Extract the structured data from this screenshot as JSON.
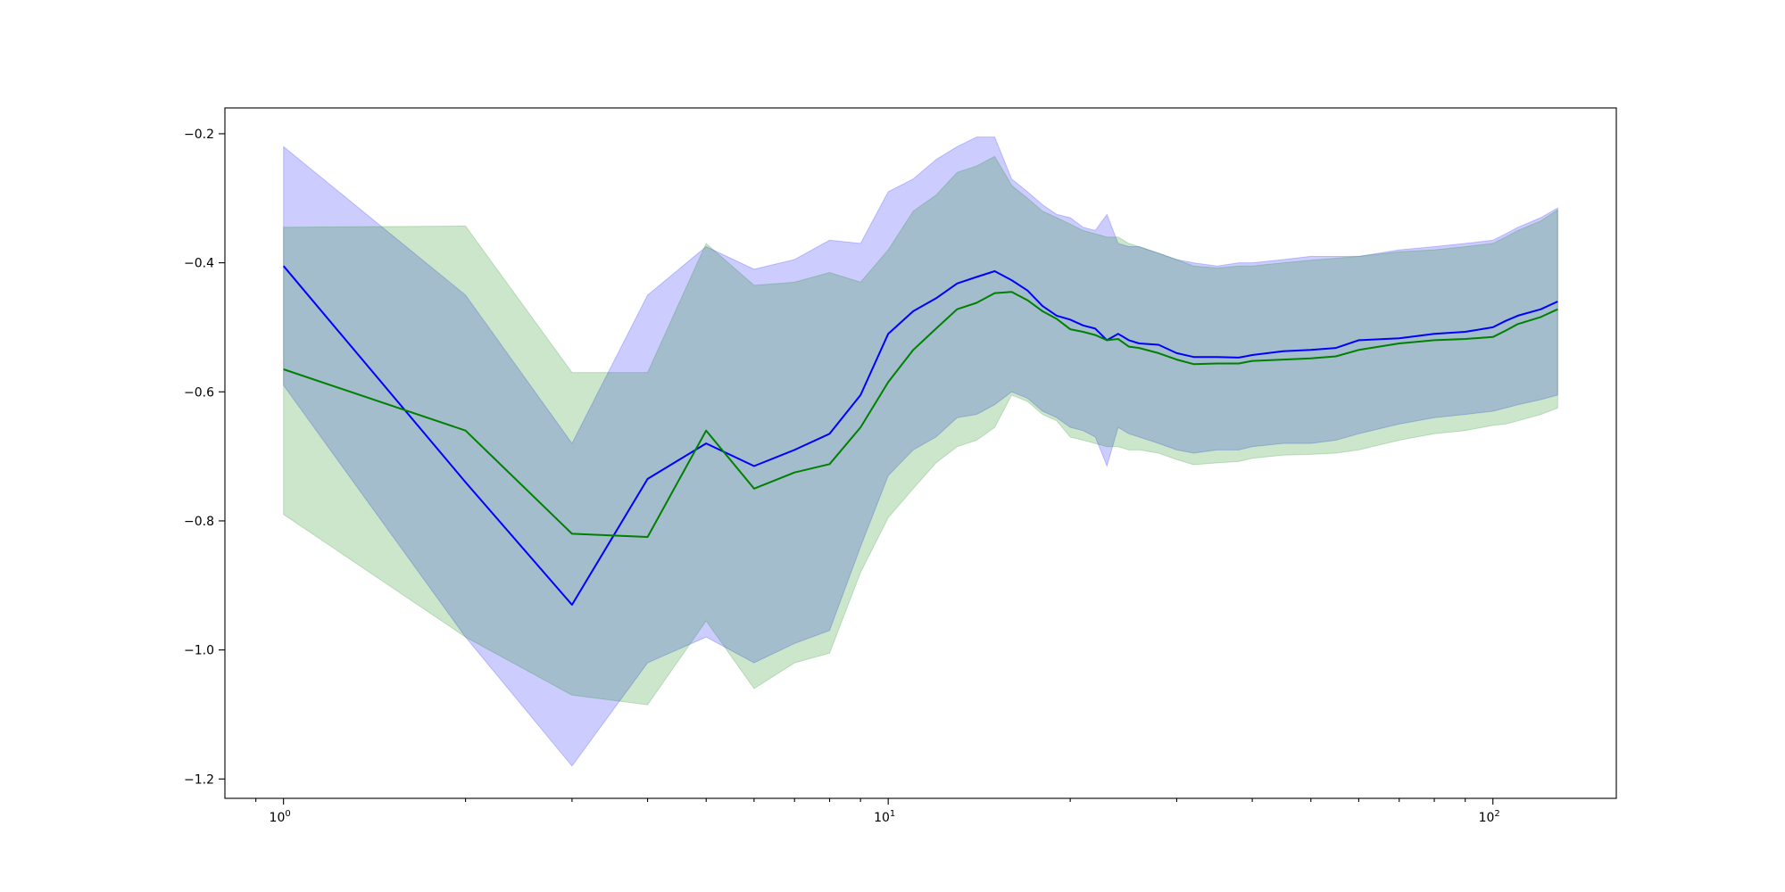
{
  "chart_data": {
    "type": "line",
    "title": "",
    "xlabel": "",
    "ylabel": "",
    "xscale": "log",
    "xlim": [
      0.8,
      160
    ],
    "ylim": [
      -1.23,
      -0.16
    ],
    "grid": false,
    "legend": "none",
    "x_ticks": [
      {
        "value": 1,
        "base": "10",
        "exp": "0"
      },
      {
        "value": 10,
        "base": "10",
        "exp": "1"
      },
      {
        "value": 100,
        "base": "10",
        "exp": "2"
      }
    ],
    "y_ticks": [
      {
        "value": -0.2,
        "label": "−0.2"
      },
      {
        "value": -0.4,
        "label": "−0.4"
      },
      {
        "value": -0.6,
        "label": "−0.6"
      },
      {
        "value": -0.8,
        "label": "−0.8"
      },
      {
        "value": -1.0,
        "label": "−1.0"
      },
      {
        "value": -1.2,
        "label": "−1.2"
      }
    ],
    "series": [
      {
        "color": "#0000ff",
        "band_color": "#0000ff",
        "band_opacity": 0.2,
        "x": [
          1,
          2,
          3,
          4,
          5,
          6,
          7,
          8,
          9,
          10,
          11,
          12,
          13,
          14,
          15,
          16,
          17,
          18,
          19,
          20,
          21,
          22,
          23,
          24,
          25,
          26,
          28,
          30,
          32,
          35,
          38,
          40,
          45,
          50,
          55,
          60,
          70,
          80,
          90,
          100,
          105,
          110,
          120,
          128
        ],
        "mean": [
          -0.405,
          -0.74,
          -0.93,
          -0.735,
          -0.68,
          -0.715,
          -0.69,
          -0.665,
          -0.605,
          -0.51,
          -0.475,
          -0.455,
          -0.432,
          -0.422,
          -0.413,
          -0.427,
          -0.443,
          -0.467,
          -0.482,
          -0.488,
          -0.497,
          -0.502,
          -0.52,
          -0.51,
          -0.52,
          -0.525,
          -0.527,
          -0.54,
          -0.546,
          -0.546,
          -0.547,
          -0.543,
          -0.537,
          -0.535,
          -0.532,
          -0.52,
          -0.517,
          -0.51,
          -0.507,
          -0.5,
          -0.49,
          -0.482,
          -0.472,
          -0.46
        ],
        "upper": [
          -0.22,
          -0.45,
          -0.68,
          -0.45,
          -0.375,
          -0.41,
          -0.395,
          -0.365,
          -0.37,
          -0.29,
          -0.27,
          -0.24,
          -0.22,
          -0.205,
          -0.205,
          -0.27,
          -0.29,
          -0.31,
          -0.325,
          -0.33,
          -0.345,
          -0.35,
          -0.325,
          -0.37,
          -0.375,
          -0.375,
          -0.385,
          -0.395,
          -0.4,
          -0.405,
          -0.4,
          -0.4,
          -0.395,
          -0.39,
          -0.39,
          -0.39,
          -0.38,
          -0.375,
          -0.37,
          -0.365,
          -0.355,
          -0.345,
          -0.33,
          -0.315
        ],
        "lower": [
          -0.59,
          -0.98,
          -1.18,
          -1.02,
          -0.98,
          -1.02,
          -0.99,
          -0.97,
          -0.84,
          -0.73,
          -0.69,
          -0.67,
          -0.64,
          -0.635,
          -0.62,
          -0.6,
          -0.61,
          -0.63,
          -0.64,
          -0.655,
          -0.66,
          -0.67,
          -0.715,
          -0.655,
          -0.665,
          -0.67,
          -0.68,
          -0.69,
          -0.695,
          -0.69,
          -0.69,
          -0.685,
          -0.68,
          -0.68,
          -0.675,
          -0.665,
          -0.65,
          -0.64,
          -0.635,
          -0.63,
          -0.625,
          -0.62,
          -0.612,
          -0.605
        ]
      },
      {
        "color": "#008000",
        "band_color": "#008000",
        "band_opacity": 0.2,
        "x": [
          1,
          2,
          3,
          4,
          5,
          6,
          7,
          8,
          9,
          10,
          11,
          12,
          13,
          14,
          15,
          16,
          17,
          18,
          19,
          20,
          21,
          22,
          23,
          24,
          25,
          26,
          28,
          30,
          32,
          35,
          38,
          40,
          45,
          50,
          55,
          60,
          70,
          80,
          90,
          100,
          105,
          110,
          120,
          128
        ],
        "mean": [
          -0.565,
          -0.66,
          -0.82,
          -0.825,
          -0.66,
          -0.75,
          -0.725,
          -0.712,
          -0.655,
          -0.585,
          -0.535,
          -0.502,
          -0.472,
          -0.462,
          -0.447,
          -0.445,
          -0.458,
          -0.475,
          -0.487,
          -0.503,
          -0.507,
          -0.512,
          -0.52,
          -0.518,
          -0.53,
          -0.532,
          -0.54,
          -0.55,
          -0.557,
          -0.556,
          -0.556,
          -0.552,
          -0.55,
          -0.548,
          -0.545,
          -0.535,
          -0.525,
          -0.52,
          -0.518,
          -0.515,
          -0.505,
          -0.495,
          -0.484,
          -0.472
        ],
        "upper": [
          -0.345,
          -0.343,
          -0.57,
          -0.57,
          -0.37,
          -0.435,
          -0.43,
          -0.415,
          -0.43,
          -0.38,
          -0.32,
          -0.295,
          -0.26,
          -0.25,
          -0.235,
          -0.28,
          -0.3,
          -0.32,
          -0.33,
          -0.34,
          -0.35,
          -0.355,
          -0.36,
          -0.36,
          -0.37,
          -0.375,
          -0.385,
          -0.395,
          -0.405,
          -0.408,
          -0.405,
          -0.405,
          -0.4,
          -0.396,
          -0.393,
          -0.39,
          -0.383,
          -0.38,
          -0.375,
          -0.37,
          -0.36,
          -0.35,
          -0.335,
          -0.318
        ],
        "lower": [
          -0.79,
          -0.98,
          -1.07,
          -1.085,
          -0.955,
          -1.06,
          -1.02,
          -1.005,
          -0.88,
          -0.795,
          -0.75,
          -0.71,
          -0.685,
          -0.675,
          -0.655,
          -0.605,
          -0.615,
          -0.635,
          -0.645,
          -0.67,
          -0.675,
          -0.68,
          -0.685,
          -0.685,
          -0.69,
          -0.69,
          -0.695,
          -0.705,
          -0.713,
          -0.71,
          -0.708,
          -0.703,
          -0.698,
          -0.697,
          -0.695,
          -0.69,
          -0.675,
          -0.665,
          -0.66,
          -0.652,
          -0.65,
          -0.645,
          -0.635,
          -0.625
        ]
      }
    ]
  }
}
